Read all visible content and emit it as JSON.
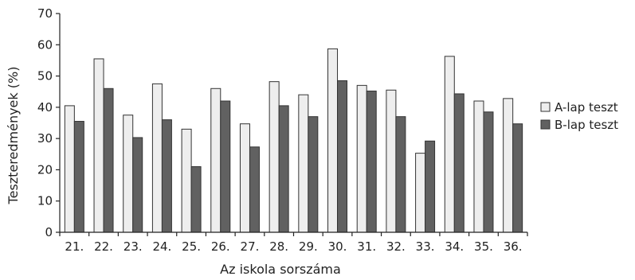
{
  "chart_data": {
    "type": "bar",
    "categories": [
      "21.",
      "22.",
      "23.",
      "24.",
      "25.",
      "26.",
      "27.",
      "28.",
      "29.",
      "30.",
      "31.",
      "32.",
      "33.",
      "34.",
      "35.",
      "36."
    ],
    "series": [
      {
        "name": "A-lap teszt",
        "color": "#eeeeee",
        "values": [
          40.5,
          55.5,
          37.5,
          47.5,
          33,
          46,
          34.7,
          48.2,
          44,
          58.7,
          47,
          45.5,
          25.3,
          56.3,
          42,
          42.8
        ]
      },
      {
        "name": "B-lap teszt",
        "color": "#616161",
        "values": [
          35.5,
          46,
          30.3,
          36,
          21,
          42,
          27.3,
          40.5,
          37,
          48.5,
          45.2,
          37,
          29.2,
          44.3,
          38.5,
          34.7
        ]
      }
    ],
    "title": "",
    "xlabel": "Az iskola sorszáma",
    "ylabel": "Teszteredmények (%)",
    "ylim": [
      0,
      70
    ],
    "yticks": [
      0,
      10,
      20,
      30,
      40,
      50,
      60,
      70
    ],
    "grid": false,
    "legend_position": "right"
  }
}
